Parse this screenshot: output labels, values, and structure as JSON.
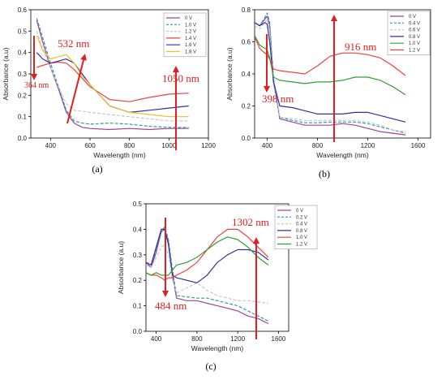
{
  "chart_data": [
    {
      "type": "line",
      "panel_label": "(a)",
      "xlabel": "Wavelength (nm)",
      "ylabel": "Absorbance (a.u)",
      "xlim": [
        300,
        1200
      ],
      "ylim": [
        0,
        0.6
      ],
      "xticks": [
        400,
        600,
        800,
        1000,
        1200
      ],
      "yticks": [
        0.0,
        0.1,
        0.2,
        0.3,
        0.4,
        0.5,
        0.6
      ],
      "xtick_labels": [
        "400",
        "600",
        "800",
        "1000",
        "1200"
      ],
      "ytick_labels": [
        "0.0",
        "0.1",
        "0.2",
        "0.3",
        "0.4",
        "0.5",
        "0.6"
      ],
      "legend_position": "top-right",
      "series": [
        {
          "name": "0 V",
          "color": "#a040a0",
          "dash": "solid",
          "x": [
            330,
            360,
            400,
            440,
            480,
            520,
            560,
            600,
            700,
            800,
            900,
            1000,
            1100
          ],
          "y": [
            0.55,
            0.45,
            0.33,
            0.23,
            0.12,
            0.07,
            0.05,
            0.045,
            0.04,
            0.045,
            0.04,
            0.045,
            0.045
          ]
        },
        {
          "name": "1.0 V",
          "color": "#2aa0a0",
          "dash": "dashed",
          "x": [
            330,
            360,
            400,
            440,
            480,
            520,
            560,
            600,
            700,
            800,
            900,
            1000,
            1100
          ],
          "y": [
            0.56,
            0.47,
            0.35,
            0.24,
            0.13,
            0.08,
            0.07,
            0.065,
            0.07,
            0.065,
            0.055,
            0.05,
            0.05
          ]
        },
        {
          "name": "1.2 V",
          "color": "#c8c8c8",
          "dash": "dashed",
          "x": [
            330,
            360,
            400,
            440,
            480,
            520,
            560,
            600,
            700,
            800,
            900,
            1000,
            1100
          ],
          "y": [
            0.5,
            0.42,
            0.33,
            0.24,
            0.16,
            0.13,
            0.125,
            0.12,
            0.11,
            0.1,
            0.09,
            0.08,
            0.08
          ]
        },
        {
          "name": "1.4 V",
          "color": "#f04040",
          "dash": "solid",
          "x": [
            330,
            360,
            400,
            440,
            480,
            520,
            560,
            600,
            700,
            800,
            900,
            1000,
            1100
          ],
          "y": [
            0.33,
            0.34,
            0.35,
            0.355,
            0.35,
            0.32,
            0.28,
            0.24,
            0.18,
            0.17,
            0.19,
            0.205,
            0.21
          ]
        },
        {
          "name": "1.6 V",
          "color": "#3030a0",
          "dash": "solid",
          "x": [
            330,
            360,
            400,
            440,
            480,
            520,
            560,
            600,
            700,
            800,
            900,
            1000,
            1100
          ],
          "y": [
            0.4,
            0.37,
            0.35,
            0.36,
            0.37,
            0.35,
            0.3,
            0.25,
            0.15,
            0.12,
            0.13,
            0.14,
            0.15
          ]
        },
        {
          "name": "1.8 V",
          "color": "#e8c030",
          "dash": "solid",
          "x": [
            330,
            360,
            400,
            440,
            480,
            520,
            560,
            600,
            700,
            800,
            900,
            1000,
            1100
          ],
          "y": [
            0.48,
            0.41,
            0.37,
            0.38,
            0.39,
            0.35,
            0.29,
            0.25,
            0.15,
            0.12,
            0.11,
            0.1,
            0.1
          ]
        }
      ],
      "annotations": [
        {
          "text": "532 nm",
          "x": 520,
          "y": 0.35
        },
        {
          "text": "364 nm",
          "x": 364,
          "y": 0.2
        },
        {
          "text": "1050 nm",
          "x": 1050,
          "y": 0.21
        }
      ]
    },
    {
      "type": "line",
      "panel_label": "(b)",
      "xlabel": "Wavelength (nm)",
      "ylabel": "Absorbance (a.u)",
      "xlim": [
        300,
        1700
      ],
      "ylim": [
        0,
        0.8
      ],
      "xticks": [
        400,
        800,
        1200,
        1600
      ],
      "yticks": [
        0.0,
        0.2,
        0.4,
        0.6,
        0.8
      ],
      "xtick_labels": [
        "400",
        "800",
        "1200",
        "1600"
      ],
      "ytick_labels": [
        "0.0",
        "0.2",
        "0.4",
        "0.6",
        "0.8"
      ],
      "legend_position": "top-right",
      "series": [
        {
          "name": "0 V",
          "color": "#a040a0",
          "dash": "solid",
          "x": [
            300,
            340,
            380,
            400,
            420,
            450,
            500,
            600,
            700,
            800,
            900,
            1000,
            1100,
            1200,
            1300,
            1400,
            1500
          ],
          "y": [
            0.72,
            0.7,
            0.74,
            0.76,
            0.7,
            0.35,
            0.12,
            0.1,
            0.08,
            0.08,
            0.08,
            0.09,
            0.08,
            0.06,
            0.04,
            0.03,
            0.02
          ]
        },
        {
          "name": "0.4 V",
          "color": "#2aa0a0",
          "dash": "dashed",
          "x": [
            300,
            340,
            380,
            400,
            420,
            450,
            500,
            600,
            700,
            800,
            900,
            1000,
            1100,
            1200,
            1300,
            1400,
            1500
          ],
          "y": [
            0.72,
            0.7,
            0.75,
            0.78,
            0.72,
            0.37,
            0.13,
            0.11,
            0.095,
            0.095,
            0.1,
            0.1,
            0.1,
            0.09,
            0.07,
            0.05,
            0.03
          ]
        },
        {
          "name": "0.6 V",
          "color": "#c8c8c8",
          "dash": "dashed",
          "x": [
            300,
            340,
            380,
            400,
            420,
            450,
            500,
            600,
            700,
            800,
            900,
            1000,
            1100,
            1200,
            1300,
            1400,
            1500
          ],
          "y": [
            0.7,
            0.68,
            0.72,
            0.74,
            0.66,
            0.33,
            0.13,
            0.12,
            0.11,
            0.11,
            0.11,
            0.11,
            0.11,
            0.1,
            0.08,
            0.05,
            0.04
          ]
        },
        {
          "name": "0.8 V",
          "color": "#3030a0",
          "dash": "solid",
          "x": [
            300,
            340,
            380,
            400,
            420,
            450,
            500,
            600,
            700,
            800,
            900,
            1000,
            1100,
            1200,
            1300,
            1400,
            1500
          ],
          "y": [
            0.72,
            0.7,
            0.72,
            0.71,
            0.6,
            0.35,
            0.2,
            0.19,
            0.17,
            0.15,
            0.15,
            0.15,
            0.16,
            0.16,
            0.14,
            0.12,
            0.1
          ]
        },
        {
          "name": "1.0 V",
          "color": "#30a030",
          "dash": "solid",
          "x": [
            300,
            340,
            380,
            400,
            420,
            450,
            500,
            600,
            700,
            800,
            900,
            1000,
            1100,
            1200,
            1300,
            1400,
            1500
          ],
          "y": [
            0.64,
            0.58,
            0.56,
            0.55,
            0.5,
            0.38,
            0.36,
            0.35,
            0.34,
            0.35,
            0.35,
            0.36,
            0.38,
            0.38,
            0.36,
            0.32,
            0.27
          ]
        },
        {
          "name": "1.2 V",
          "color": "#f04040",
          "dash": "solid",
          "x": [
            300,
            340,
            380,
            400,
            420,
            450,
            500,
            600,
            700,
            800,
            900,
            1000,
            1100,
            1200,
            1300,
            1400,
            1500
          ],
          "y": [
            0.63,
            0.56,
            0.53,
            0.52,
            0.49,
            0.43,
            0.42,
            0.41,
            0.4,
            0.45,
            0.51,
            0.53,
            0.53,
            0.52,
            0.5,
            0.45,
            0.39
          ]
        }
      ],
      "annotations": [
        {
          "text": "916 nm",
          "x": 916,
          "y": 0.52
        },
        {
          "text": "398 nm",
          "x": 398,
          "y": 0.2
        }
      ]
    },
    {
      "type": "line",
      "panel_label": "(c)",
      "xlabel": "Wavelength (nm)",
      "ylabel": "Absorbance (a.u)",
      "xlim": [
        300,
        1700
      ],
      "ylim": [
        0,
        0.5
      ],
      "xticks": [
        400,
        800,
        1200,
        1600
      ],
      "yticks": [
        0.0,
        0.1,
        0.2,
        0.3,
        0.4,
        0.5
      ],
      "xtick_labels": [
        "400",
        "800",
        "1200",
        "1600"
      ],
      "ytick_labels": [
        "0.0",
        "0.1",
        "0.2",
        "0.3",
        "0.4",
        "0.5"
      ],
      "legend_position": "top-right",
      "series": [
        {
          "name": "0 V",
          "color": "#a040a0",
          "dash": "solid",
          "x": [
            300,
            350,
            400,
            450,
            484,
            520,
            560,
            600,
            700,
            800,
            900,
            1000,
            1100,
            1200,
            1300,
            1400,
            1500
          ],
          "y": [
            0.27,
            0.25,
            0.31,
            0.39,
            0.4,
            0.35,
            0.22,
            0.13,
            0.12,
            0.12,
            0.11,
            0.1,
            0.09,
            0.08,
            0.06,
            0.05,
            0.03
          ]
        },
        {
          "name": "0.2 V",
          "color": "#2aa0a0",
          "dash": "dashed",
          "x": [
            300,
            350,
            400,
            450,
            484,
            520,
            560,
            600,
            700,
            800,
            900,
            1000,
            1100,
            1200,
            1300,
            1400,
            1500
          ],
          "y": [
            0.27,
            0.26,
            0.32,
            0.39,
            0.41,
            0.36,
            0.24,
            0.14,
            0.135,
            0.13,
            0.13,
            0.12,
            0.11,
            0.1,
            0.08,
            0.06,
            0.04
          ]
        },
        {
          "name": "0.4 V",
          "color": "#c8c8c8",
          "dash": "dashed",
          "x": [
            300,
            350,
            400,
            450,
            484,
            520,
            560,
            600,
            700,
            800,
            900,
            1000,
            1100,
            1200,
            1300,
            1400,
            1500
          ],
          "y": [
            0.26,
            0.25,
            0.29,
            0.33,
            0.34,
            0.3,
            0.2,
            0.15,
            0.17,
            0.19,
            0.16,
            0.14,
            0.13,
            0.12,
            0.12,
            0.115,
            0.11
          ]
        },
        {
          "name": "0.8 V",
          "color": "#3030a0",
          "dash": "solid",
          "x": [
            300,
            350,
            400,
            450,
            484,
            520,
            560,
            600,
            700,
            800,
            900,
            1000,
            1100,
            1200,
            1300,
            1400,
            1500
          ],
          "y": [
            0.27,
            0.26,
            0.33,
            0.4,
            0.4,
            0.34,
            0.22,
            0.21,
            0.2,
            0.19,
            0.22,
            0.27,
            0.3,
            0.32,
            0.32,
            0.31,
            0.28
          ]
        },
        {
          "name": "1.0 V",
          "color": "#f04040",
          "dash": "solid",
          "x": [
            300,
            350,
            400,
            450,
            484,
            520,
            560,
            600,
            700,
            800,
            900,
            1000,
            1100,
            1200,
            1300,
            1400,
            1500
          ],
          "y": [
            0.23,
            0.22,
            0.22,
            0.21,
            0.2,
            0.21,
            0.21,
            0.22,
            0.24,
            0.27,
            0.32,
            0.37,
            0.4,
            0.4,
            0.37,
            0.33,
            0.29
          ]
        },
        {
          "name": "1.2 V",
          "color": "#30a030",
          "dash": "solid",
          "x": [
            300,
            350,
            400,
            450,
            484,
            520,
            560,
            600,
            700,
            800,
            900,
            1000,
            1100,
            1200,
            1300,
            1400,
            1500
          ],
          "y": [
            0.23,
            0.22,
            0.23,
            0.22,
            0.22,
            0.22,
            0.24,
            0.26,
            0.27,
            0.29,
            0.32,
            0.35,
            0.37,
            0.36,
            0.33,
            0.29,
            0.26
          ]
        }
      ],
      "annotations": [
        {
          "text": "1302 nm",
          "x": 1302,
          "y": 0.4
        },
        {
          "text": "484 nm",
          "x": 484,
          "y": 0.2
        }
      ]
    }
  ]
}
